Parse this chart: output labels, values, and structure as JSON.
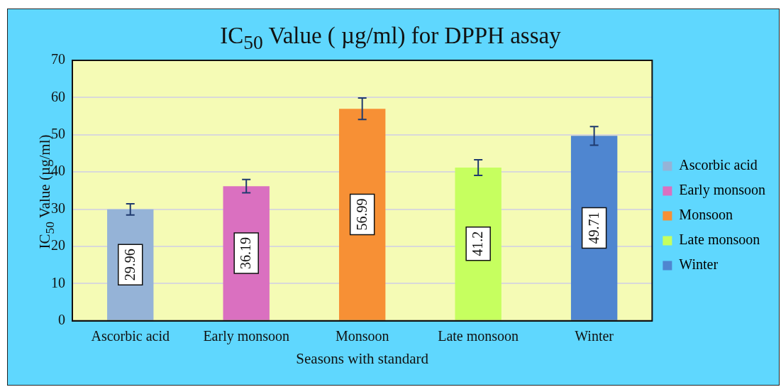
{
  "chart_data": {
    "type": "bar",
    "title": "IC$_{50}$ Value ( µg/ml) for DPPH assay",
    "xlabel": "Seasons with standard",
    "ylabel": "IC$_{50}$ Value (µg/ml)",
    "categories": [
      "Ascorbic acid",
      "Early monsoon",
      "Monsoon",
      "Late monsoon",
      "Winter"
    ],
    "series": [
      {
        "name": "Ascorbic acid",
        "color": "#95b3d7",
        "values": [
          29.96,
          null,
          null,
          null,
          null
        ],
        "errors": [
          1.5,
          null,
          null,
          null,
          null
        ]
      },
      {
        "name": "Early monsoon",
        "color": "#da70c0",
        "values": [
          null,
          36.19,
          null,
          null,
          null
        ],
        "errors": [
          null,
          1.8,
          null,
          null,
          null
        ]
      },
      {
        "name": "Monsoon",
        "color": "#f79035",
        "values": [
          null,
          null,
          56.99,
          null,
          null
        ],
        "errors": [
          null,
          null,
          2.9,
          null,
          null
        ]
      },
      {
        "name": "Late monsoon",
        "color": "#c6ff5f",
        "values": [
          null,
          null,
          null,
          41.2,
          null
        ],
        "errors": [
          null,
          null,
          null,
          2.1,
          null
        ]
      },
      {
        "name": "Winter",
        "color": "#4f86d0",
        "values": [
          null,
          null,
          null,
          null,
          49.71
        ],
        "errors": [
          null,
          null,
          null,
          null,
          2.5
        ]
      }
    ],
    "ylim": [
      0,
      70
    ],
    "yticks": [
      0,
      10,
      20,
      30,
      40,
      50,
      60,
      70
    ],
    "grid": "y",
    "legend": "right",
    "data_labels": true
  }
}
